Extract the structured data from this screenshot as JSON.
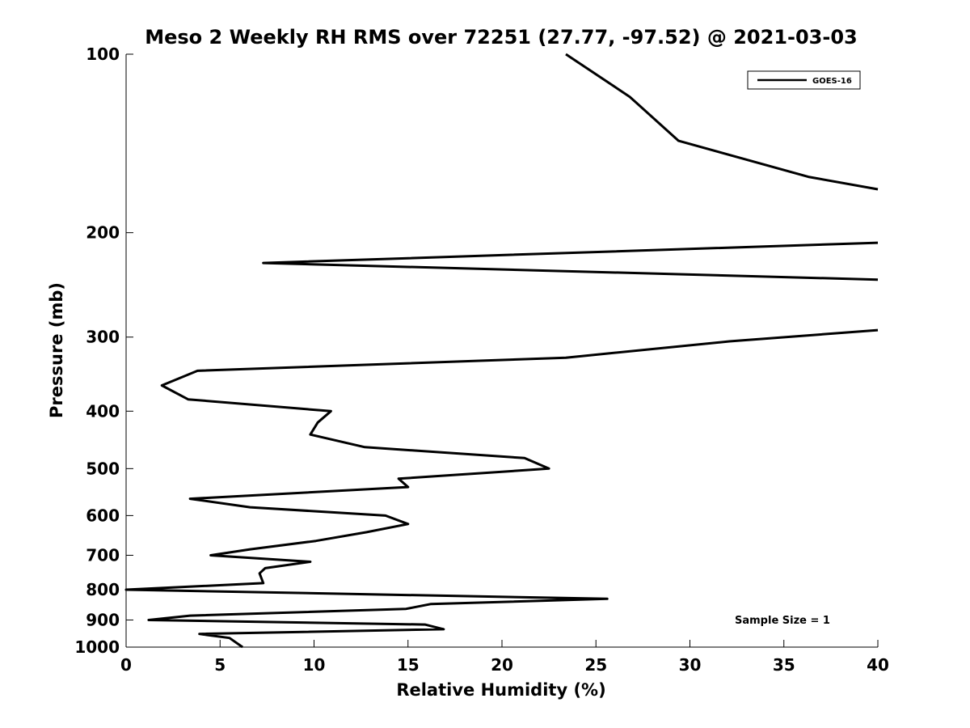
{
  "chart_data": {
    "type": "line",
    "title": "Meso 2 Weekly RH RMS over 72251 (27.77, -97.52) @ 2021-03-03",
    "xlabel": "Relative Humidity (%)",
    "ylabel": "Pressure (mb)",
    "xlim": [
      0,
      40
    ],
    "ylim": [
      100,
      1000
    ],
    "y_scale": "log",
    "y_reversed": true,
    "xticks": [
      0,
      5,
      10,
      15,
      20,
      25,
      30,
      35,
      40
    ],
    "yticks": [
      100,
      200,
      300,
      400,
      500,
      600,
      700,
      800,
      900,
      1000
    ],
    "grid": false,
    "legend": {
      "position": "top-right",
      "entries": [
        "GOES-16"
      ]
    },
    "annotation": "Sample Size = 1",
    "series": [
      {
        "name": "GOES-16",
        "color": "#000000",
        "x": [
          23.4,
          26.8,
          29.4,
          36.3,
          40.0,
          null,
          40.0,
          7.3,
          40.0,
          null,
          40.0,
          32.1,
          23.4,
          3.8,
          1.9,
          3.3,
          10.9,
          10.2,
          9.8,
          12.7,
          21.2,
          22.5,
          14.5,
          15.0,
          3.4,
          6.6,
          13.8,
          15.0,
          12.8,
          10.1,
          6.6,
          4.5,
          9.8,
          7.4,
          7.1,
          7.3,
          0.0,
          25.6,
          16.2,
          14.9,
          3.4,
          1.2,
          15.9,
          16.9,
          3.9,
          5.5,
          6.2
        ],
        "y": [
          100,
          118,
          140,
          161,
          169,
          null,
          208,
          225,
          240,
          null,
          292,
          305,
          325,
          342,
          362,
          382,
          400,
          418,
          438,
          460,
          480,
          500,
          520,
          537,
          562,
          581,
          600,
          620,
          640,
          662,
          684,
          700,
          718,
          736,
          751,
          780,
          800,
          829,
          846,
          862,
          885,
          900,
          916,
          933,
          950,
          965,
          1000
        ]
      }
    ]
  }
}
